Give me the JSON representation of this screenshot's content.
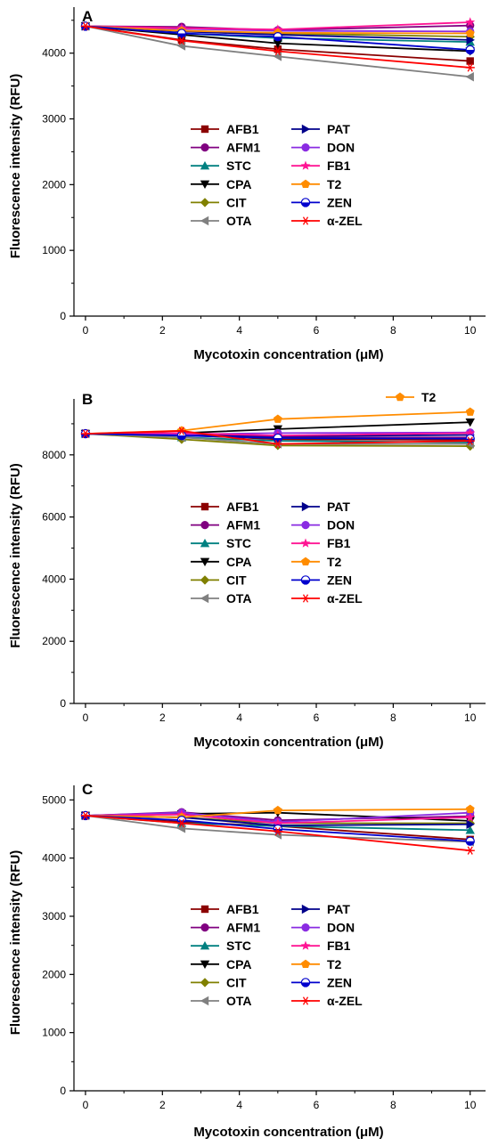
{
  "chart_data": [
    {
      "type": "line",
      "panel_label": "A",
      "xlabel": "Mycotoxin concentration (μM)",
      "ylabel": "Fluorescence intensity (RFU)",
      "x": [
        0,
        2.5,
        5,
        10
      ],
      "xlim": [
        -0.3,
        10.4
      ],
      "ylim": [
        0,
        4700
      ],
      "xticks": [
        0,
        2,
        4,
        6,
        8,
        10
      ],
      "yticks": [
        0,
        1000,
        2000,
        3000,
        4000
      ],
      "series": [
        {
          "name": "AFB1",
          "color": "#8b0000",
          "marker": "square",
          "values": [
            4410,
            4200,
            4060,
            3880
          ]
        },
        {
          "name": "AFM1",
          "color": "#800080",
          "marker": "circle",
          "values": [
            4410,
            4400,
            4350,
            4420
          ]
        },
        {
          "name": "STC",
          "color": "#008080",
          "marker": "triangle-up",
          "values": [
            4410,
            4300,
            4230,
            4170
          ]
        },
        {
          "name": "CPA",
          "color": "#000000",
          "marker": "triangle-down",
          "values": [
            4410,
            4280,
            4150,
            4030
          ]
        },
        {
          "name": "CIT",
          "color": "#808000",
          "marker": "diamond",
          "values": [
            4410,
            4340,
            4300,
            4250
          ]
        },
        {
          "name": "OTA",
          "color": "#808080",
          "marker": "triangle-left",
          "values": [
            4410,
            4110,
            3950,
            3640
          ]
        },
        {
          "name": "PAT",
          "color": "#00008b",
          "marker": "triangle-right",
          "values": [
            4410,
            4330,
            4280,
            4200
          ]
        },
        {
          "name": "DON",
          "color": "#8a2be2",
          "marker": "circle",
          "values": [
            4410,
            4370,
            4340,
            4330
          ]
        },
        {
          "name": "FB1",
          "color": "#ff1493",
          "marker": "star",
          "values": [
            4410,
            4380,
            4360,
            4470
          ]
        },
        {
          "name": "T2",
          "color": "#ff8c00",
          "marker": "pentagon",
          "values": [
            4410,
            4340,
            4310,
            4300
          ]
        },
        {
          "name": "ZEN",
          "color": "#0000cd",
          "marker": "half-circle",
          "values": [
            4410,
            4300,
            4250,
            4050
          ]
        },
        {
          "name": "α-ZEL",
          "color": "#ff0000",
          "marker": "asterisk",
          "values": [
            4410,
            4190,
            4030,
            3780
          ]
        }
      ]
    },
    {
      "type": "line",
      "panel_label": "B",
      "xlabel": "Mycotoxin concentration (μM)",
      "ylabel": "Fluorescence intensity (RFU)",
      "x": [
        0,
        2.5,
        5,
        10
      ],
      "xlim": [
        -0.3,
        10.4
      ],
      "ylim": [
        0,
        9800
      ],
      "xticks": [
        0,
        2,
        4,
        6,
        8,
        10
      ],
      "yticks": [
        0,
        2000,
        4000,
        6000,
        8000
      ],
      "extra_legend": "T2",
      "series": [
        {
          "name": "AFB1",
          "color": "#8b0000",
          "marker": "square",
          "values": [
            8680,
            8640,
            8500,
            8480
          ]
        },
        {
          "name": "AFM1",
          "color": "#800080",
          "marker": "circle",
          "values": [
            8680,
            8620,
            8560,
            8560
          ]
        },
        {
          "name": "STC",
          "color": "#008080",
          "marker": "triangle-up",
          "values": [
            8680,
            8560,
            8450,
            8400
          ]
        },
        {
          "name": "CPA",
          "color": "#000000",
          "marker": "triangle-down",
          "values": [
            8680,
            8700,
            8830,
            9050
          ]
        },
        {
          "name": "CIT",
          "color": "#808000",
          "marker": "diamond",
          "values": [
            8680,
            8500,
            8300,
            8280
          ]
        },
        {
          "name": "OTA",
          "color": "#808080",
          "marker": "triangle-left",
          "values": [
            8680,
            8560,
            8350,
            8350
          ]
        },
        {
          "name": "PAT",
          "color": "#00008b",
          "marker": "triangle-right",
          "values": [
            8680,
            8650,
            8600,
            8640
          ]
        },
        {
          "name": "DON",
          "color": "#8a2be2",
          "marker": "circle",
          "values": [
            8680,
            8660,
            8700,
            8720
          ]
        },
        {
          "name": "FB1",
          "color": "#ff1493",
          "marker": "star",
          "values": [
            8680,
            8700,
            8620,
            8700
          ]
        },
        {
          "name": "T2",
          "color": "#ff8c00",
          "marker": "pentagon",
          "values": [
            8680,
            8780,
            9150,
            9380
          ]
        },
        {
          "name": "ZEN",
          "color": "#0000cd",
          "marker": "half-circle",
          "values": [
            8680,
            8620,
            8540,
            8520
          ]
        },
        {
          "name": "α-ZEL",
          "color": "#ff0000",
          "marker": "asterisk",
          "values": [
            8680,
            8770,
            8350,
            8450
          ]
        }
      ]
    },
    {
      "type": "line",
      "panel_label": "C",
      "xlabel": "Mycotoxin concentration (μM)",
      "ylabel": "Fluorescence intensity (RFU)",
      "x": [
        0,
        2.5,
        5,
        10
      ],
      "xlim": [
        -0.3,
        10.4
      ],
      "ylim": [
        0,
        5250
      ],
      "xticks": [
        0,
        2,
        4,
        6,
        8,
        10
      ],
      "yticks": [
        0,
        1000,
        2000,
        3000,
        4000,
        5000
      ],
      "series": [
        {
          "name": "AFB1",
          "color": "#8b0000",
          "marker": "square",
          "values": [
            4730,
            4620,
            4550,
            4320
          ]
        },
        {
          "name": "AFM1",
          "color": "#800080",
          "marker": "circle",
          "values": [
            4730,
            4790,
            4650,
            4720
          ]
        },
        {
          "name": "STC",
          "color": "#008080",
          "marker": "triangle-up",
          "values": [
            4730,
            4600,
            4550,
            4480
          ]
        },
        {
          "name": "CPA",
          "color": "#000000",
          "marker": "triangle-down",
          "values": [
            4730,
            4760,
            4780,
            4640
          ]
        },
        {
          "name": "CIT",
          "color": "#808000",
          "marker": "diamond",
          "values": [
            4730,
            4700,
            4600,
            4600
          ]
        },
        {
          "name": "OTA",
          "color": "#808080",
          "marker": "triangle-left",
          "values": [
            4730,
            4510,
            4400,
            4280
          ]
        },
        {
          "name": "PAT",
          "color": "#00008b",
          "marker": "triangle-right",
          "values": [
            4730,
            4700,
            4560,
            4580
          ]
        },
        {
          "name": "DON",
          "color": "#8a2be2",
          "marker": "circle",
          "values": [
            4730,
            4780,
            4620,
            4780
          ]
        },
        {
          "name": "FB1",
          "color": "#ff1493",
          "marker": "star",
          "values": [
            4730,
            4750,
            4600,
            4700
          ]
        },
        {
          "name": "T2",
          "color": "#ff8c00",
          "marker": "pentagon",
          "values": [
            4730,
            4700,
            4820,
            4840
          ]
        },
        {
          "name": "ZEN",
          "color": "#0000cd",
          "marker": "half-circle",
          "values": [
            4730,
            4650,
            4500,
            4290
          ]
        },
        {
          "name": "α-ZEL",
          "color": "#ff0000",
          "marker": "asterisk",
          "values": [
            4730,
            4600,
            4460,
            4130
          ]
        }
      ]
    }
  ]
}
